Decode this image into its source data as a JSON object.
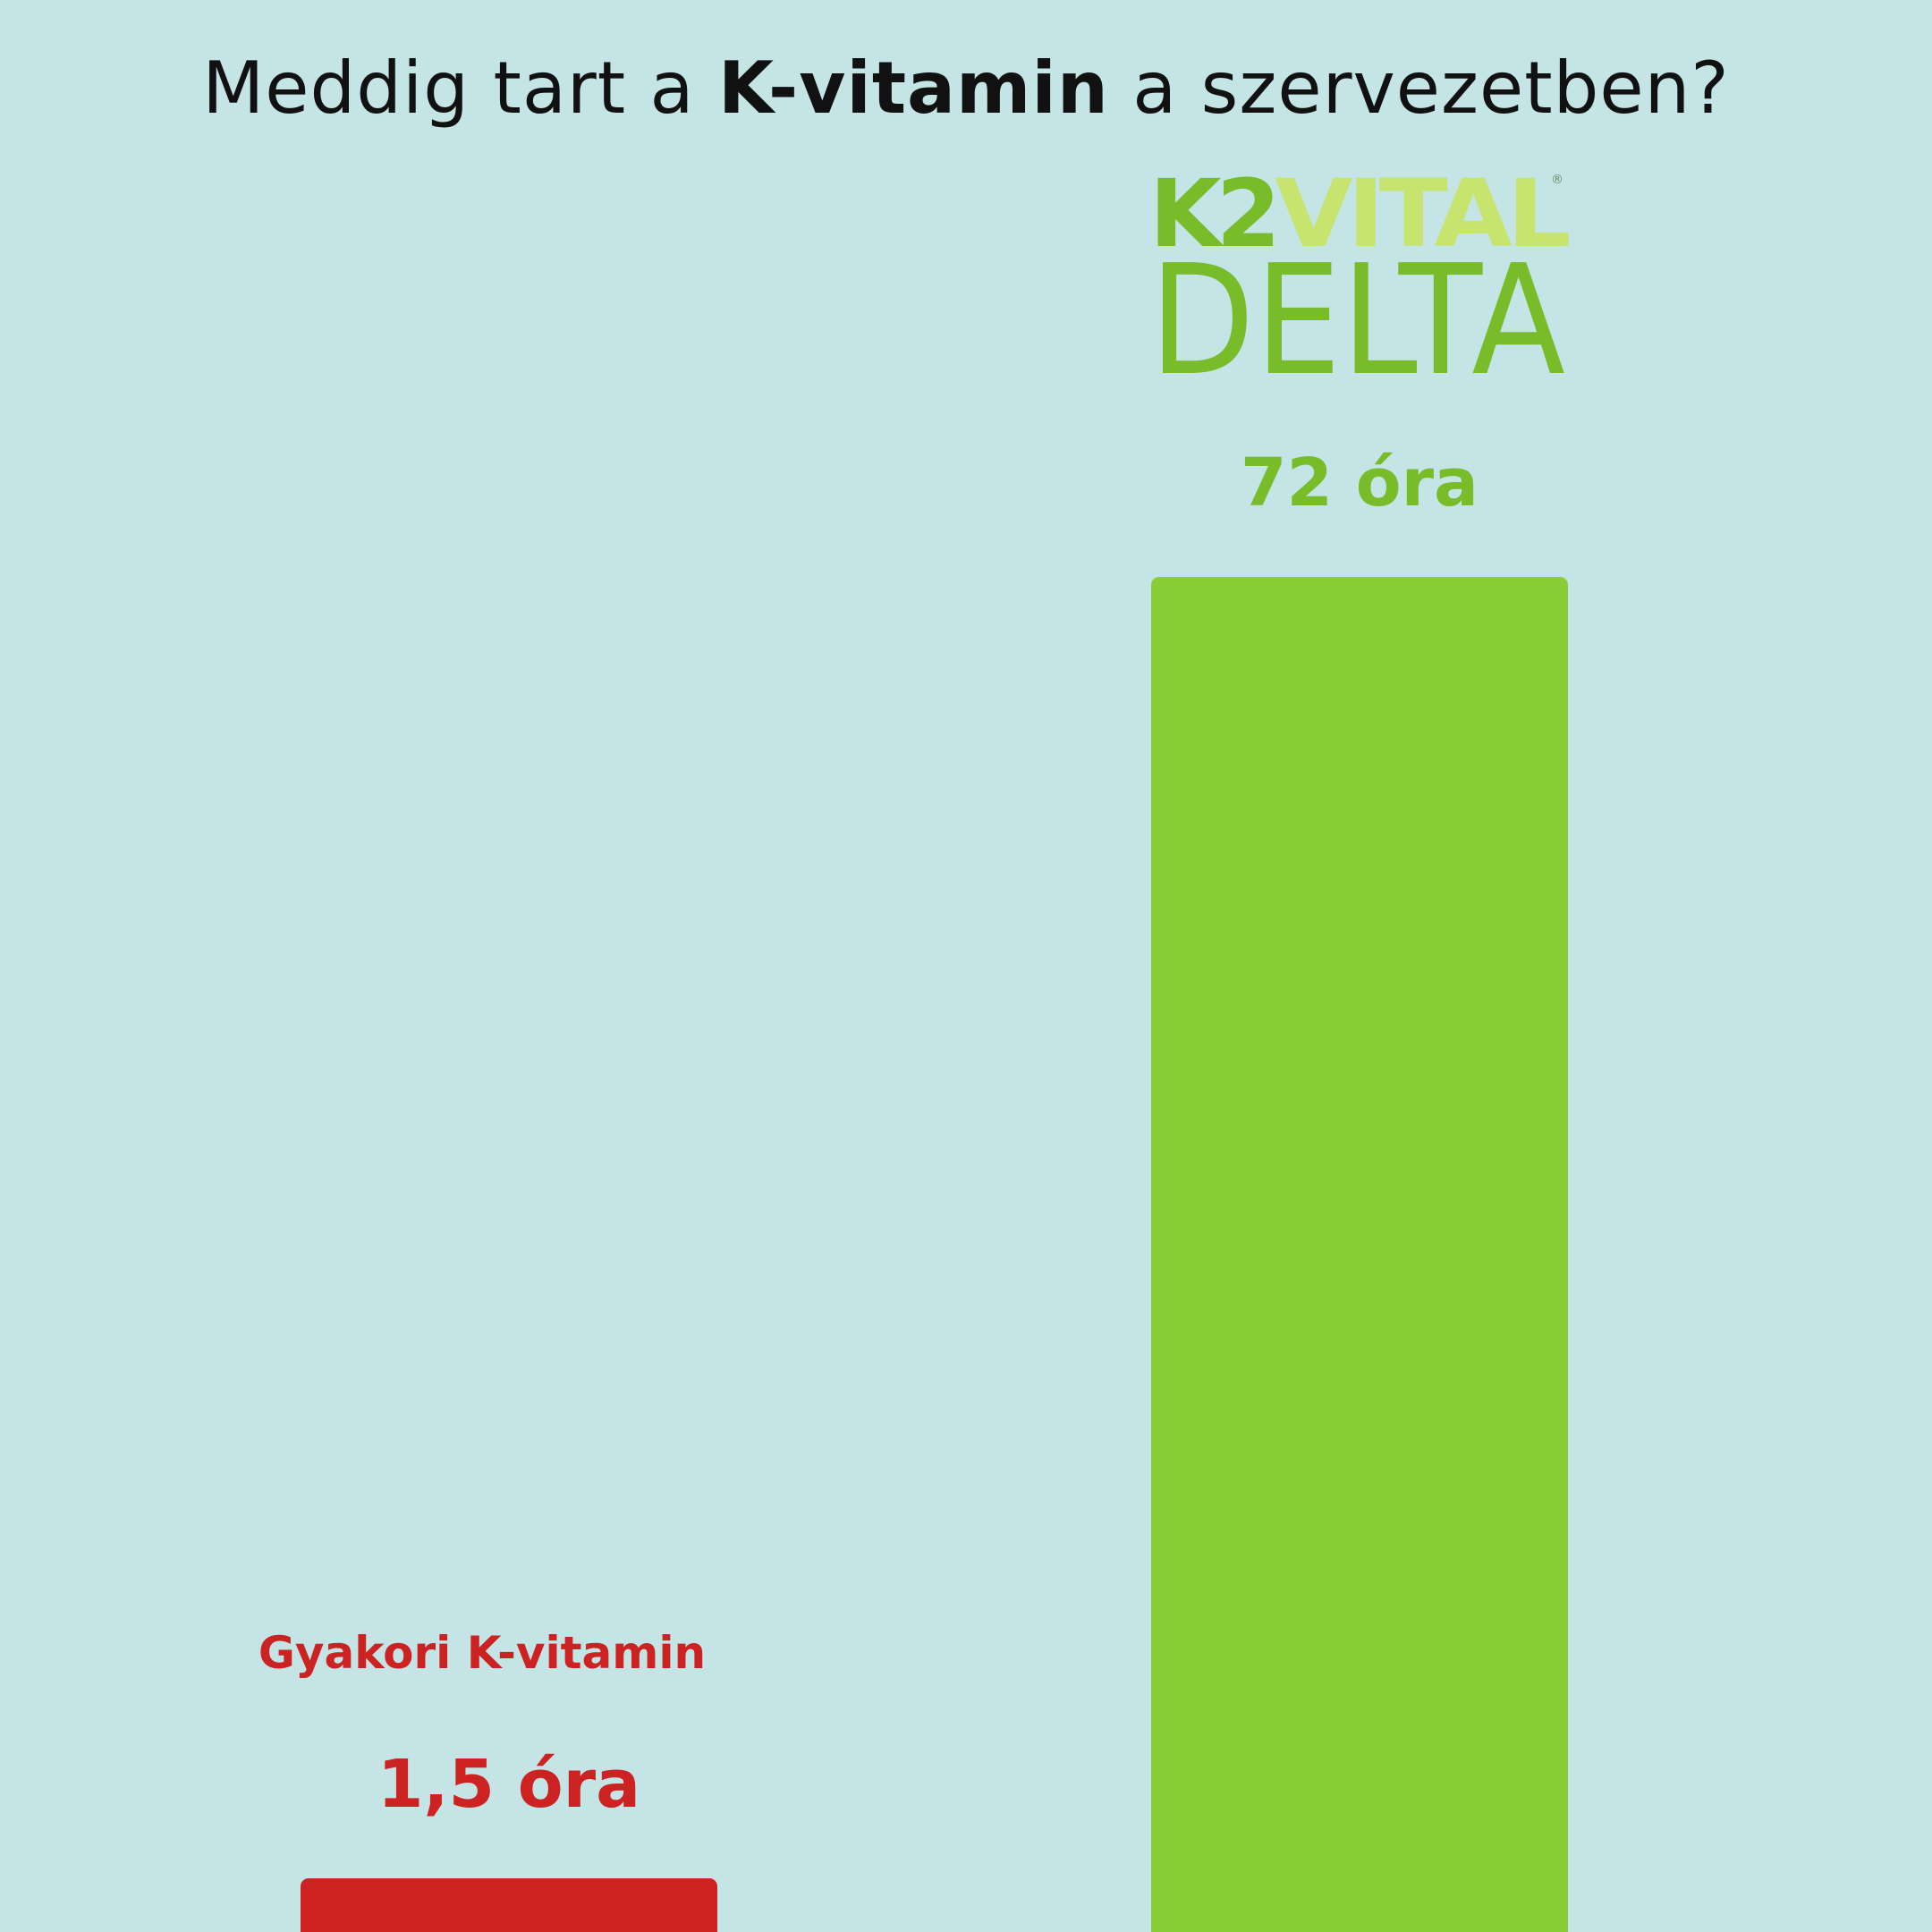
{
  "title": {
    "prefix": "Meddig tart a",
    "bold": "K-vitamin",
    "suffix": "a szervezetben?"
  },
  "logo": {
    "line1_dark": "K2",
    "line1_light": "VITAL",
    "registered": "®",
    "line2": "DELTA"
  },
  "colors": {
    "background": "#c4e4e5",
    "red": "#cc2222",
    "green": "#88cc36",
    "logo_dark_green": "#78bc2a",
    "logo_light_green": "#c6e46e"
  },
  "chart_data": {
    "type": "bar",
    "title": "Meddig tart a K-vitamin a szervezetben?",
    "unit": "óra",
    "categories": [
      "Gyakori K-vitamin",
      "K2VITAL DELTA"
    ],
    "values": [
      1.5,
      72
    ],
    "value_labels": [
      "1,5 óra",
      "72 óra"
    ],
    "category_labels": [
      "Gyakori K-vitamin",
      ""
    ],
    "bar_colors": [
      "#cc2222",
      "#88cc36"
    ],
    "label_colors": [
      "#cc2222",
      "#78bc2a"
    ],
    "grid": false,
    "legend": "none"
  }
}
